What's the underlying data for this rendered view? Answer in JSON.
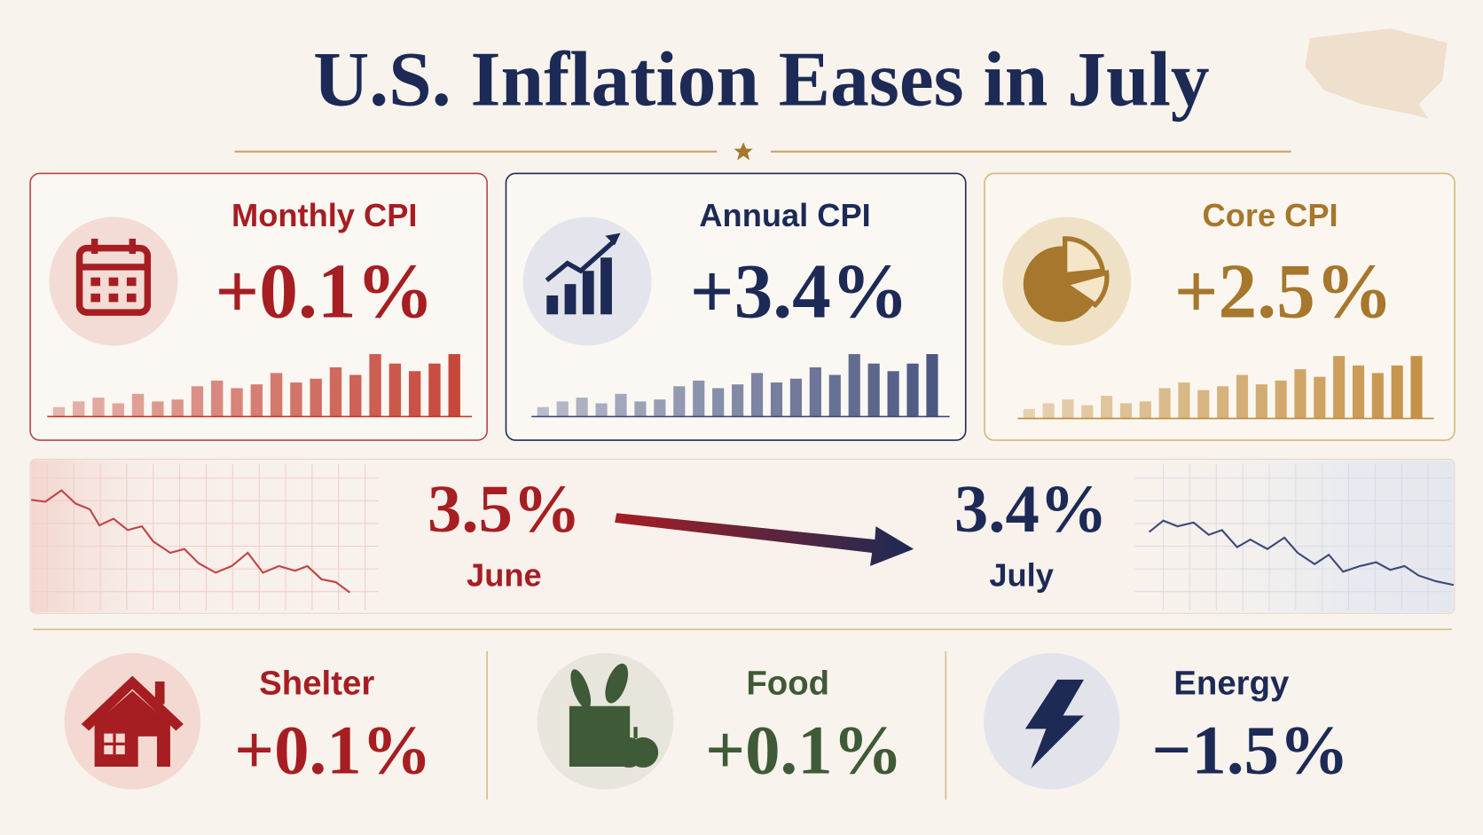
{
  "header": {
    "title": "U.S. Inflation Eases in July"
  },
  "cards": [
    {
      "label": "Monthly CPI",
      "value": "+0.1%"
    },
    {
      "label": "Annual CPI",
      "value": "+3.4%"
    },
    {
      "label": "Core CPI",
      "value": "+2.5%"
    }
  ],
  "comparison": {
    "from": {
      "value": "3.5%",
      "label": "June"
    },
    "to": {
      "value": "3.4%",
      "label": "July"
    }
  },
  "components": [
    {
      "label": "Shelter",
      "value": "+0.1%"
    },
    {
      "label": "Food",
      "value": "+0.1%"
    },
    {
      "label": "Energy",
      "value": "−1.5%"
    }
  ]
}
